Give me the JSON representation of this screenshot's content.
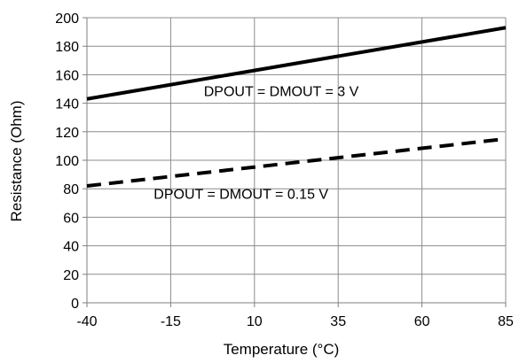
{
  "chart_data": {
    "type": "line",
    "title": "",
    "xlabel": "Temperature (°C)",
    "ylabel": "Resistance (Ohm)",
    "xlim": [
      -40,
      85
    ],
    "ylim": [
      0,
      200
    ],
    "xticks": [
      -40,
      -15,
      10,
      35,
      60,
      85
    ],
    "yticks": [
      0,
      20,
      40,
      60,
      80,
      100,
      120,
      140,
      160,
      180,
      200
    ],
    "x_tick_labels": [
      "-40",
      "-15",
      "10",
      "35",
      "60",
      "85"
    ],
    "y_tick_labels": [
      "0",
      "20",
      "40",
      "60",
      "80",
      "100",
      "120",
      "140",
      "160",
      "180",
      "200"
    ],
    "grid": true,
    "legend": "none",
    "series": [
      {
        "name": "DPOUT = DMOUT = 3 V",
        "style": "solid",
        "color": "#000000",
        "x": [
          -40,
          85
        ],
        "y": [
          143,
          193
        ]
      },
      {
        "name": "DPOUT = DMOUT = 0.15 V",
        "style": "dashed",
        "color": "#000000",
        "x": [
          -40,
          85
        ],
        "y": [
          82,
          115
        ]
      }
    ],
    "annotations": [
      {
        "text": "DPOUT = DMOUT = 3 V",
        "x": 18,
        "y": 145
      },
      {
        "text": "DPOUT = DMOUT = 0.15 V",
        "x": 6,
        "y": 73
      }
    ]
  }
}
